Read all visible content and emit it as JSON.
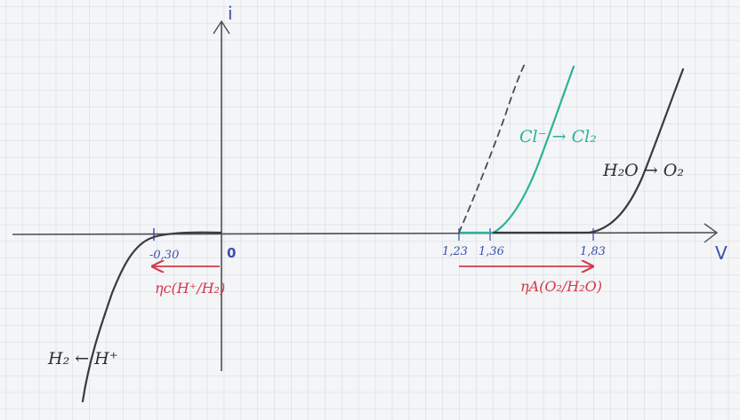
{
  "axes": {
    "x_label": "V",
    "y_label": "i",
    "origin_label": "0"
  },
  "ticks": {
    "t_neg030": "-0,30",
    "t_123": "1,23",
    "t_136": "1,36",
    "t_183": "1,83"
  },
  "reactions": {
    "h2": "H₂ ← H⁺",
    "h2o": "H₂O → O₂",
    "cl": "Cl⁻ → Cl₂"
  },
  "overpotentials": {
    "cathodic": "ηc(H⁺/H₂)",
    "anodic": "ηA(O₂/H₂O)"
  },
  "colors": {
    "grid": "#c7ced8",
    "axis": "#4a4d55",
    "curve": "#3a3b40",
    "teal": "#2bb39a",
    "red": "#d23a4a",
    "blue": "#3a4fb0"
  }
}
